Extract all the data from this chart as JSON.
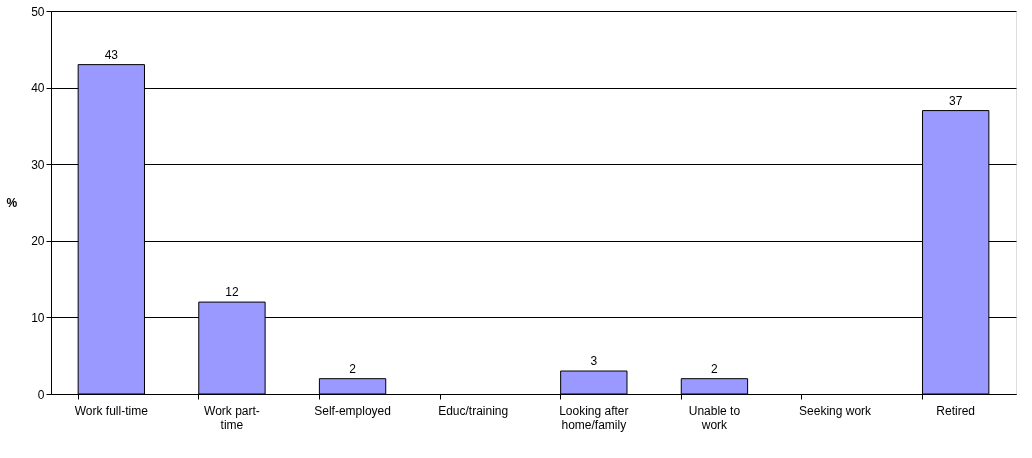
{
  "chart_data": {
    "type": "bar",
    "ylabel": "%",
    "categories": [
      "Work full-time",
      "Work part-\ntime",
      "Self-employed",
      "Educ/training",
      "Looking after\nhome/family",
      "Unable to\nwork",
      "Seeking work",
      "Retired"
    ],
    "values": [
      43,
      12,
      2,
      null,
      3,
      2,
      null,
      37
    ],
    "color": "#9999ff",
    "ylim": [
      0,
      50
    ],
    "yticks": [
      0,
      10,
      20,
      30,
      40,
      50
    ],
    "grid": "y",
    "data_labels": true
  }
}
